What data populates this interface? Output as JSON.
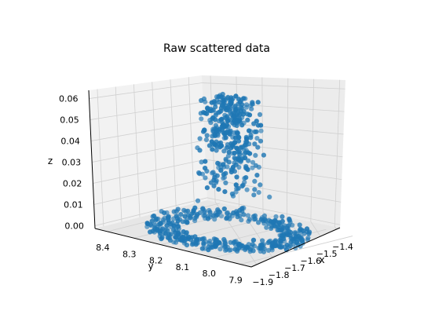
{
  "chart_data": {
    "type": "scatter",
    "projection": "3d",
    "title": "Raw scattered data",
    "xlabel": "x",
    "ylabel": "y",
    "zlabel": "z",
    "xticks": [
      "−1.9",
      "−1.8",
      "−1.7",
      "−1.6",
      "−1.5",
      "−1.4"
    ],
    "yticks": [
      "8.4",
      "8.3",
      "8.2",
      "8.1",
      "8.0",
      "7.9"
    ],
    "zticks": [
      "0.00",
      "0.01",
      "0.02",
      "0.03",
      "0.04",
      "0.05",
      "0.06"
    ],
    "xlim": [
      -1.9,
      -1.35
    ],
    "ylim": [
      7.85,
      8.4
    ],
    "zlim": [
      0.0,
      0.065
    ],
    "grid": true,
    "marker_color": "#1f77b4",
    "pane_color": "#f2f2f2",
    "description_of_points": "About 1000 points: dense ring near z=0 surrounding a cluster rising to z~0.065 near center"
  }
}
